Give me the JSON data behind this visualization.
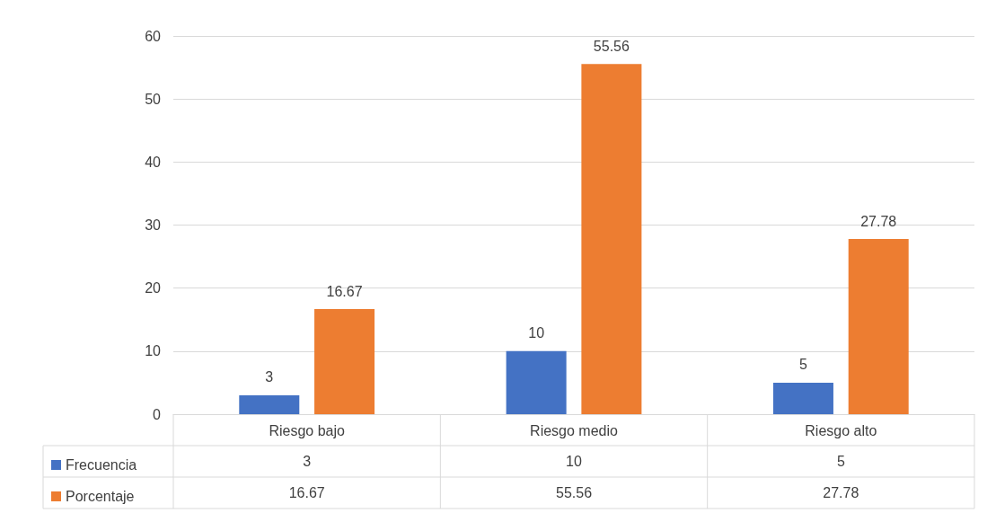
{
  "chart_data": {
    "type": "bar",
    "categories": [
      "Riesgo bajo",
      "Riesgo medio",
      "Riesgo alto"
    ],
    "series": [
      {
        "name": "Frecuencia",
        "color": "#4472c4",
        "values": [
          3,
          10,
          5
        ]
      },
      {
        "name": "Porcentaje",
        "color": "#ed7d31",
        "values": [
          16.67,
          55.56,
          27.78
        ]
      }
    ],
    "annotations": [
      "3",
      "10",
      "5",
      "16.67",
      "55.56",
      "27.78"
    ],
    "ylim": [
      0,
      60
    ],
    "yticks": [
      0,
      10,
      20,
      30,
      40,
      50,
      60
    ],
    "grid": "y",
    "legend": "bottom left",
    "data_labels": true
  }
}
